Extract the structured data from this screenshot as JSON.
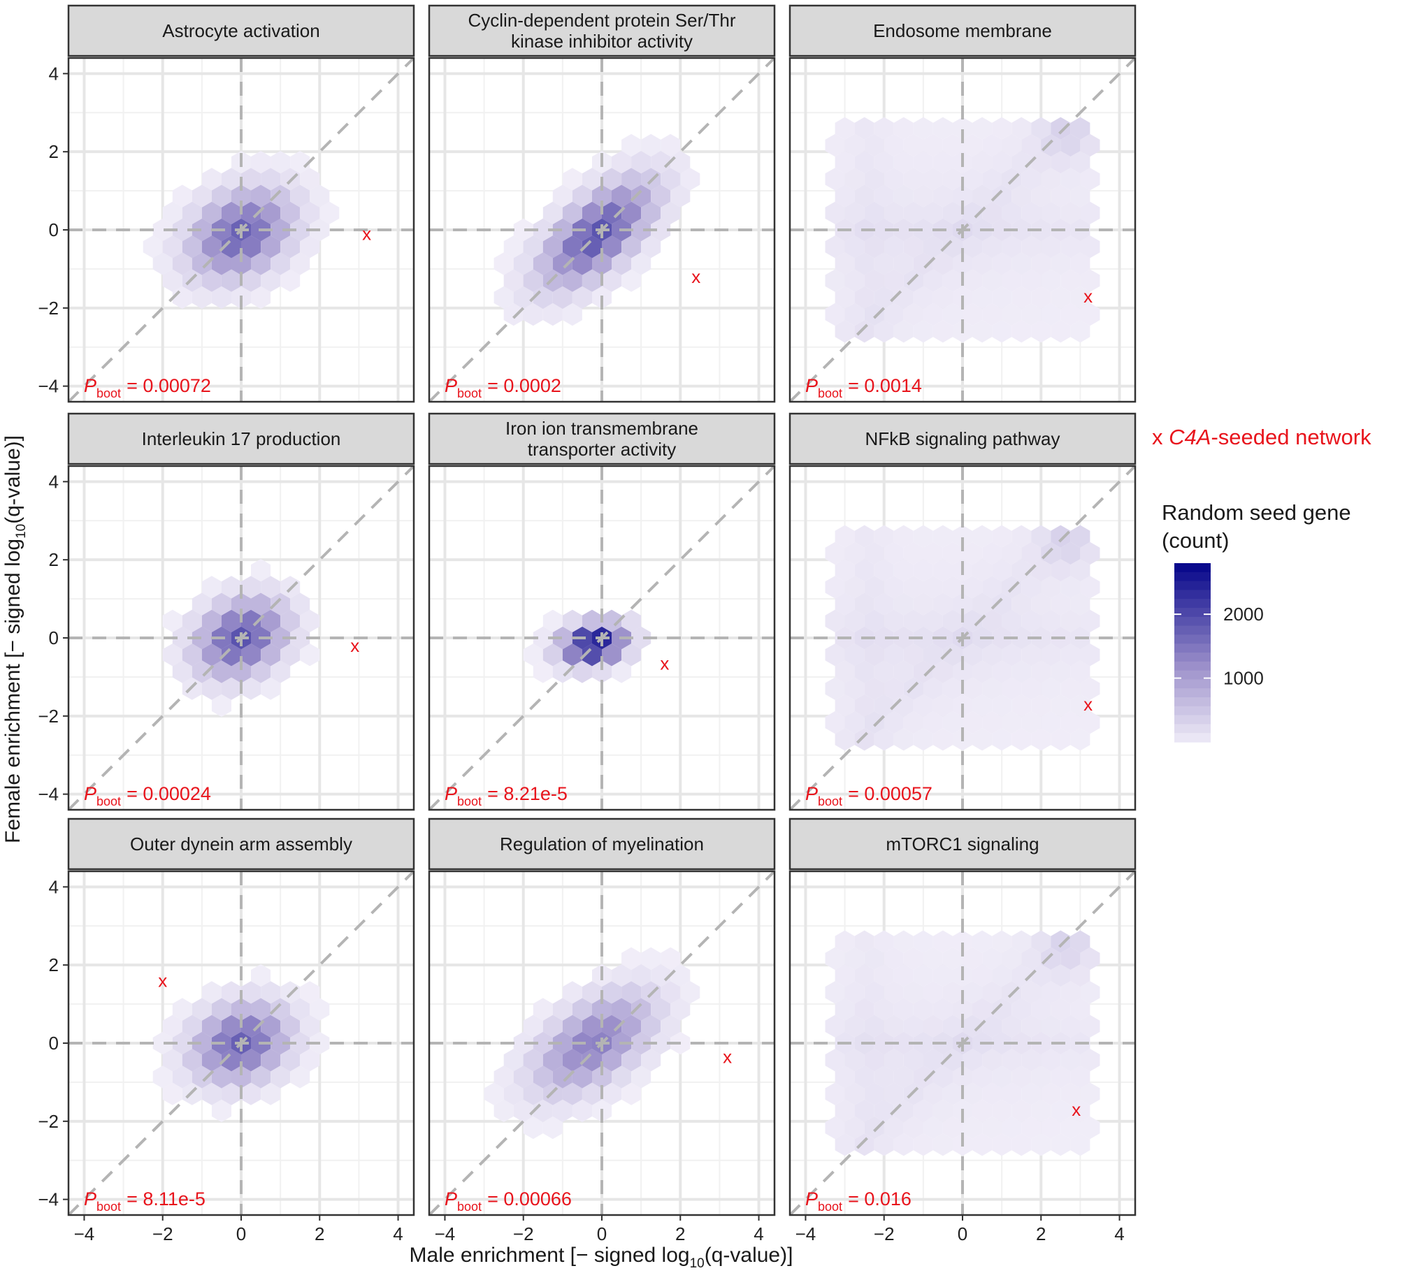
{
  "colors": {
    "hex_low": "#f4f1fa",
    "hex_mid": "#9b8fca",
    "hex_high": "#0a0a8c",
    "marker": "#e8141c",
    "strip_fill": "#d9d9d9",
    "ref_line": "#b4b4b4"
  },
  "axes": {
    "x_title_prefix": "Male enrichment [− signed log",
    "x_title_sub": "10",
    "x_title_suffix": "(q-value)]",
    "y_title_prefix": "Female enrichment [− signed log",
    "y_title_sub": "10",
    "y_title_suffix": "(q-value)]",
    "x_ticks": [
      "−4",
      "−2",
      "0",
      "2",
      "4"
    ],
    "y_ticks": [
      "4",
      "2",
      "0",
      "−2",
      "−4"
    ]
  },
  "legend": {
    "seed_marker": "x",
    "seed_gene": "C4A",
    "seed_suffix": "-seeded network",
    "title_line1": "Random seed gene",
    "title_line2": "(count)",
    "tick_labels": [
      "2000",
      "1000"
    ]
  },
  "chart_data": {
    "type": "hexbin-facets",
    "x_label": "Male enrichment [− signed log10(q-value)]",
    "y_label": "Female enrichment [− signed log10(q-value)]",
    "xlim": [
      -4.4,
      4.4
    ],
    "ylim": [
      -4.4,
      4.4
    ],
    "x_breaks": [
      -4,
      -2,
      0,
      2,
      4
    ],
    "y_breaks": [
      -4,
      -2,
      0,
      2,
      4
    ],
    "legend_range": [
      0,
      2800
    ],
    "legend_breaks": [
      1000,
      2000
    ],
    "reference_lines": [
      "x = 0",
      "y = 0",
      "y = x"
    ],
    "p_label": "P",
    "p_sub": "boot",
    "facets": [
      {
        "title": [
          "Astrocyte activation"
        ],
        "p_boot": "= 0.00072",
        "seed_point": {
          "x": 3.2,
          "y": -0.1
        },
        "pattern": "central",
        "density": {
          "cx": 0.0,
          "cy": -0.1,
          "sx": 0.85,
          "sy": 0.75,
          "rho": 0.3,
          "peak": 1800,
          "spread_x": 3.1,
          "spread_y": 2.1
        }
      },
      {
        "title": [
          "Cyclin-dependent protein Ser/Thr",
          "kinase inhibitor activity"
        ],
        "p_boot": "= 0.0002",
        "seed_point": {
          "x": 2.4,
          "y": -1.2
        },
        "pattern": "diagonal",
        "density": {
          "cx": -0.1,
          "cy": -0.1,
          "sx": 0.95,
          "sy": 0.9,
          "rho": 0.65,
          "peak": 1950,
          "spread_x": 2.8,
          "spread_y": 2.3
        }
      },
      {
        "title": [
          "Endosome membrane"
        ],
        "p_boot": "= 0.0014",
        "seed_point": {
          "x": 3.2,
          "y": -1.7
        },
        "pattern": "diffuse",
        "density": {
          "cx": 0.0,
          "cy": 0.0,
          "sx": 2.2,
          "sy": 2.0,
          "rho": 0.35,
          "peak": 320,
          "spread_x": 3.4,
          "spread_y": 3.0
        }
      },
      {
        "title": [
          "Interleukin 17 production"
        ],
        "p_boot": "= 0.00024",
        "seed_point": {
          "x": 2.9,
          "y": -0.2
        },
        "pattern": "central",
        "density": {
          "cx": 0.0,
          "cy": 0.0,
          "sx": 0.75,
          "sy": 0.65,
          "rho": 0.25,
          "peak": 1950,
          "spread_x": 3.3,
          "spread_y": 2.0
        }
      },
      {
        "title": [
          "Iron ion transmembrane",
          "transporter activity"
        ],
        "p_boot": "= 8.21e-5",
        "seed_point": {
          "x": 1.6,
          "y": -0.65
        },
        "pattern": "tight",
        "density": {
          "cx": -0.2,
          "cy": -0.15,
          "sx": 0.55,
          "sy": 0.35,
          "rho": 0.2,
          "peak": 2800,
          "spread_x": 1.9,
          "spread_y": 1.0
        }
      },
      {
        "title": [
          "NFkB signaling pathway"
        ],
        "p_boot": "= 0.00057",
        "seed_point": {
          "x": 3.2,
          "y": -1.7
        },
        "pattern": "diffuse",
        "density": {
          "cx": 0.0,
          "cy": 0.0,
          "sx": 2.2,
          "sy": 2.0,
          "rho": 0.35,
          "peak": 320,
          "spread_x": 3.4,
          "spread_y": 3.0
        }
      },
      {
        "title": [
          "Outer dynein arm assembly"
        ],
        "p_boot": "= 8.11e-5",
        "seed_point": {
          "x": -2.0,
          "y": 1.6
        },
        "pattern": "central",
        "density": {
          "cx": 0.0,
          "cy": 0.0,
          "sx": 0.8,
          "sy": 0.65,
          "rho": 0.2,
          "peak": 1800,
          "spread_x": 3.0,
          "spread_y": 2.0
        }
      },
      {
        "title": [
          "Regulation of myelination"
        ],
        "p_boot": "= 0.00066",
        "seed_point": {
          "x": 3.2,
          "y": -0.35
        },
        "pattern": "diagonal",
        "density": {
          "cx": -0.2,
          "cy": 0.0,
          "sx": 1.0,
          "sy": 0.85,
          "rho": 0.55,
          "peak": 1450,
          "spread_x": 3.5,
          "spread_y": 2.6
        }
      },
      {
        "title": [
          "mTORC1 signaling"
        ],
        "p_boot": "= 0.016",
        "seed_point": {
          "x": 2.9,
          "y": -1.7
        },
        "pattern": "diffuse",
        "density": {
          "cx": 0.0,
          "cy": 0.0,
          "sx": 2.2,
          "sy": 2.0,
          "rho": 0.3,
          "peak": 300,
          "spread_x": 3.4,
          "spread_y": 3.0
        }
      }
    ]
  }
}
